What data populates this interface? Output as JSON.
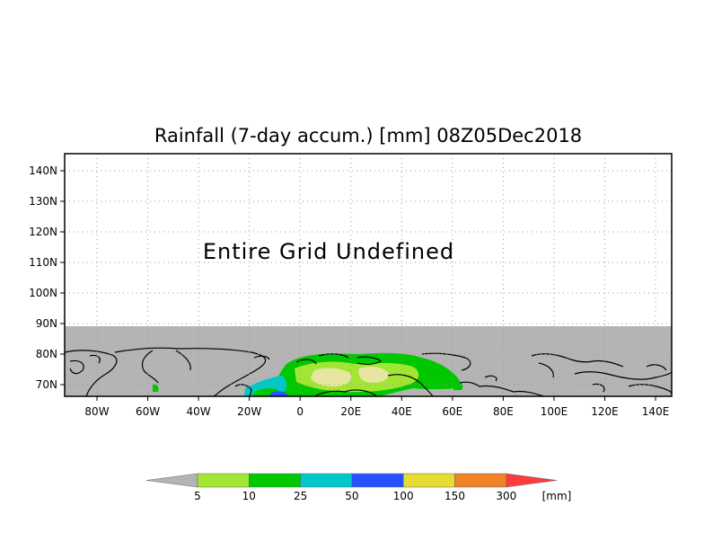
{
  "title": "Rainfall (7-day accum.) [mm] 08Z05Dec2018",
  "message": "Entire Grid Undefined",
  "map": {
    "x_ticks": [
      "80W",
      "60W",
      "40W",
      "20W",
      "0",
      "20E",
      "40E",
      "60E",
      "80E",
      "100E",
      "120E",
      "140E"
    ],
    "y_ticks": [
      "140N",
      "130N",
      "120N",
      "110N",
      "100N",
      "90N",
      "80N",
      "70N"
    ],
    "undefined_color": "#b4b4b4",
    "gridlines": "dotted"
  },
  "legend": {
    "unit": "[mm]",
    "thresholds": [
      "5",
      "10",
      "25",
      "50",
      "100",
      "150",
      "300"
    ],
    "colors": [
      "#a0e632",
      "#00c800",
      "#00c8c8",
      "#2850ff",
      "#e6dc32",
      "#f08228",
      "#fa3c3c"
    ],
    "below_color": "#b4b4b4"
  }
}
